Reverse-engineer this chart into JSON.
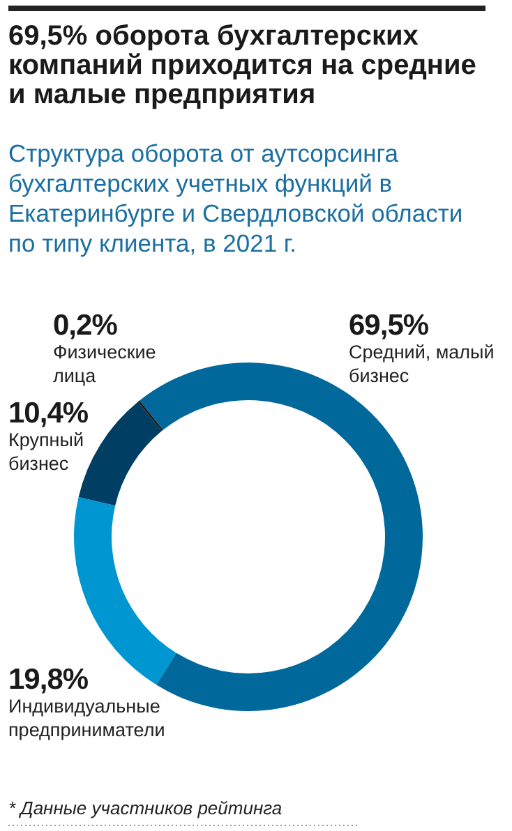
{
  "chart_data": {
    "type": "donut",
    "title": "69,5% оборота бухгалтерских компаний приходится на средние и малые предприятия",
    "subtitle": "Структура оборота от аутсорсинга бухгалтерских учетных функций в Екатеринбурге и Свердловской области по типу клиента, в 2021 г.",
    "categories": [
      "Средний, малый бизнес",
      "Индивидуальные предприниматели",
      "Крупный бизнес",
      "Физические лица"
    ],
    "values": [
      69.5,
      19.8,
      10.4,
      0.2
    ],
    "value_labels": [
      "69,5%",
      "19,8%",
      "10,4%",
      "0,2%"
    ],
    "colors": [
      "#00689b",
      "#0096d2",
      "#003f63",
      "#1a1a1a"
    ],
    "annotations": [
      "* Данные участников рейтинга"
    ]
  }
}
